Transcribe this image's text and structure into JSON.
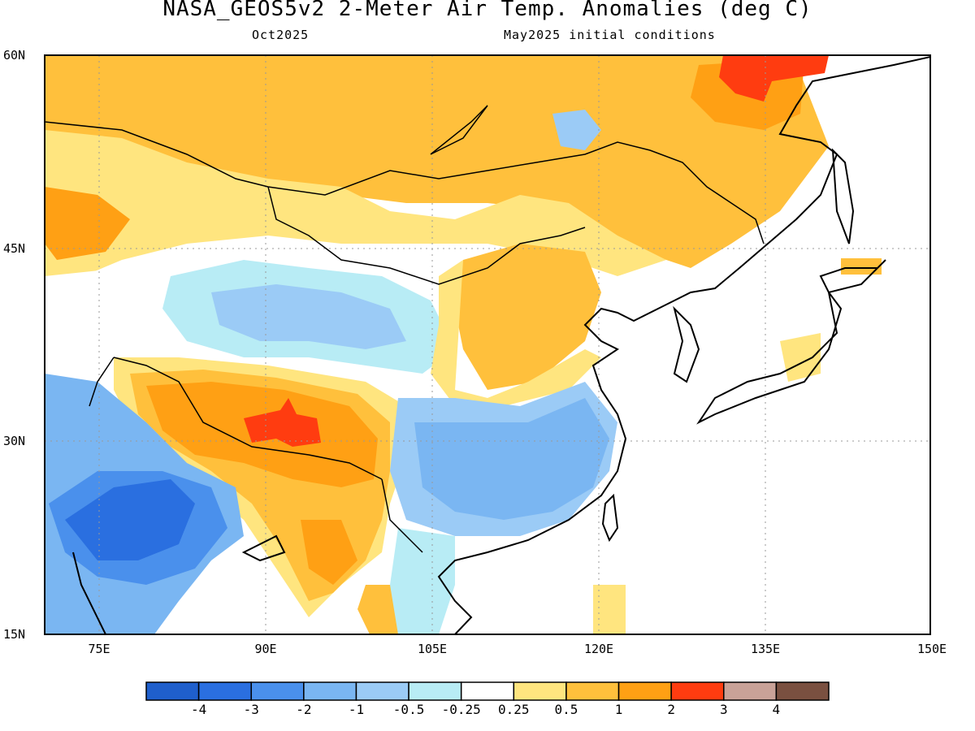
{
  "title": "NASA_GEOS5v2 2-Meter Air Temp. Anomalies (deg C)",
  "subtitle_left": "Oct2025",
  "subtitle_right": "May2025 initial conditions",
  "map": {
    "lat_labels": [
      "60N",
      "45N",
      "30N",
      "15N"
    ],
    "lon_labels": [
      "75E",
      "90E",
      "105E",
      "120E",
      "135E",
      "150E"
    ],
    "extent": {
      "lon": [
        70,
        150
      ],
      "lat": [
        15,
        60
      ]
    }
  },
  "colorbar": {
    "labels": [
      "-4",
      "-3",
      "-2",
      "-1",
      "-0.5",
      "-0.25",
      "0.25",
      "0.5",
      "1",
      "2",
      "3",
      "4"
    ],
    "colors": [
      "#1f5fcc",
      "#2a6fe0",
      "#4a90ec",
      "#7ab6f2",
      "#9bcbf6",
      "#b8ecf5",
      "#ffffff",
      "#ffe57f",
      "#ffc03c",
      "#ffa014",
      "#ff3c10",
      "#c9a298",
      "#7a5040"
    ]
  }
}
